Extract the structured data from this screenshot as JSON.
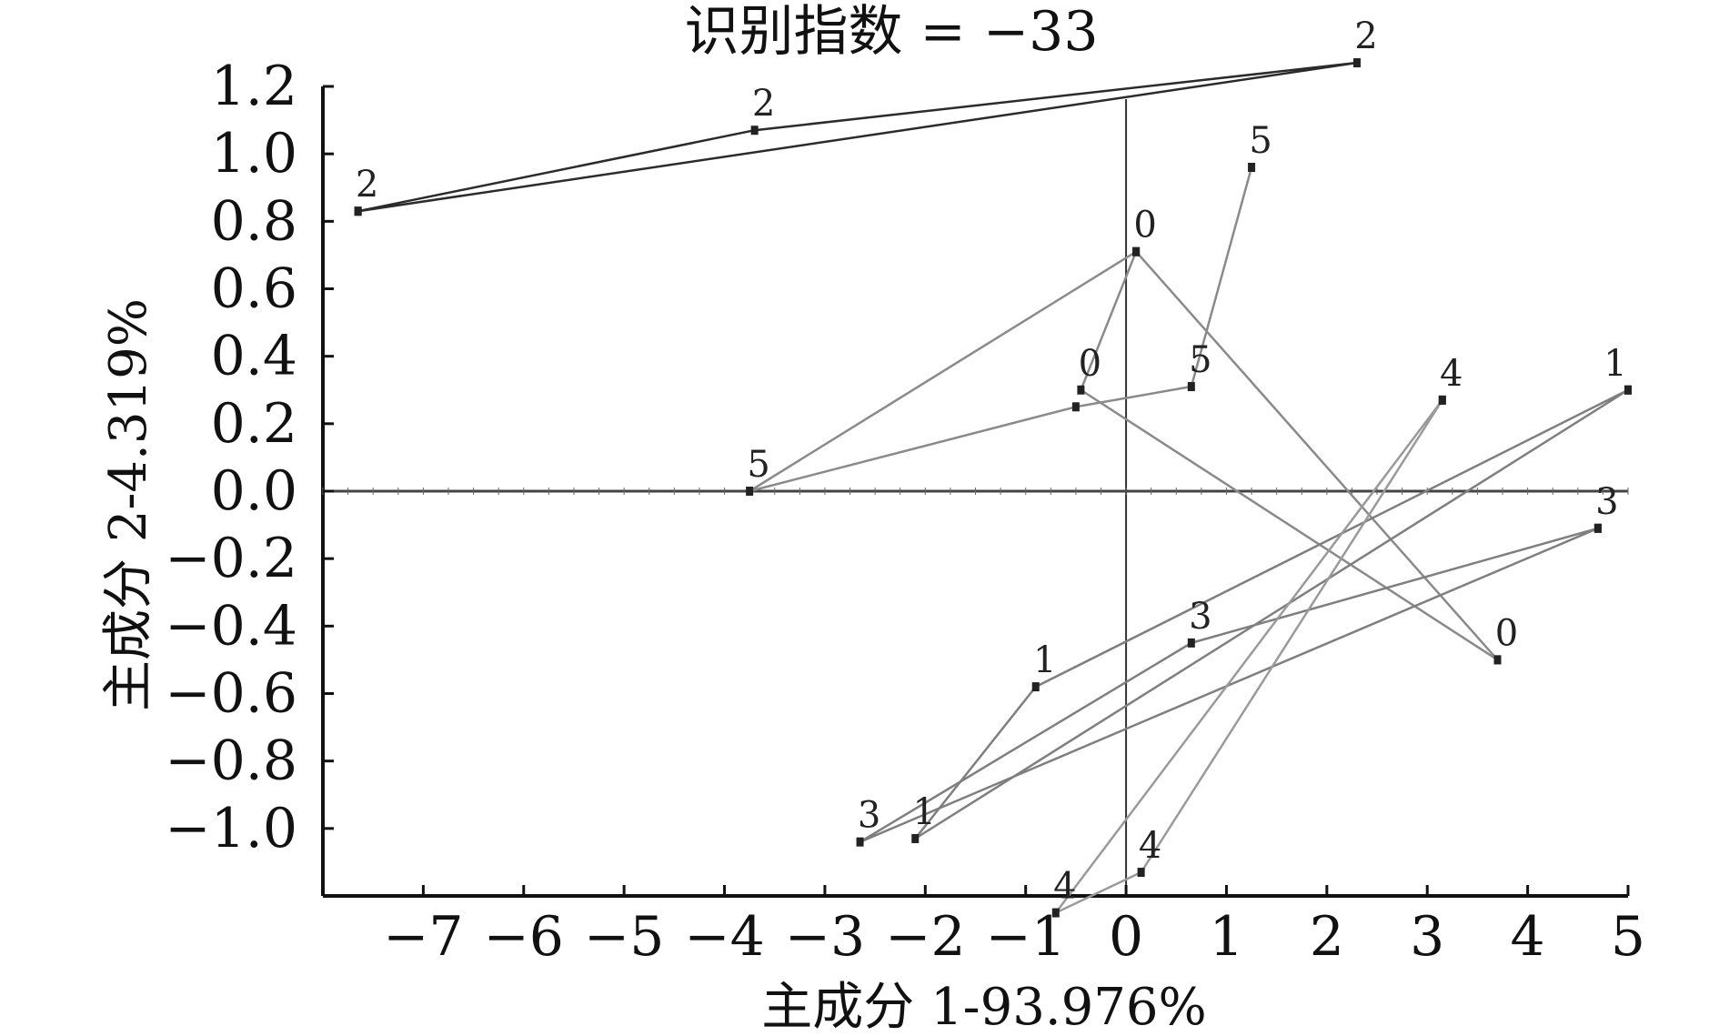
{
  "chart_data": {
    "type": "scatter",
    "title": "识别指数 = −33",
    "xlabel": "主成分 1-93.976%",
    "ylabel": "主成分 2-4.319%",
    "xlim": [
      -8.0,
      5.0
    ],
    "ylim": [
      -1.2,
      1.2
    ],
    "xticks": [
      -7,
      -6,
      -5,
      -4,
      -3,
      -2,
      -1,
      0,
      1,
      2,
      3,
      4,
      5
    ],
    "xtick_labels": [
      "−7",
      "−6",
      "−5",
      "−4",
      "−3",
      "−2",
      "−1",
      "0",
      "1",
      "2",
      "3",
      "4",
      "5"
    ],
    "yticks": [
      1.2,
      1.0,
      0.8,
      0.6,
      0.4,
      0.2,
      0.0,
      -0.2,
      -0.4,
      -0.6,
      -0.8,
      -1.0
    ],
    "ytick_labels": [
      "1.2",
      "1.0",
      "0.8",
      "0.6",
      "0.4",
      "0.2",
      "0.0",
      "−0.2",
      "−0.4",
      "−0.6",
      "−0.8",
      "−1.0"
    ],
    "grid": false,
    "series": [
      {
        "label": "2",
        "color": "#2b2b2b",
        "points": [
          {
            "x": -7.65,
            "y": 0.83
          },
          {
            "x": -3.7,
            "y": 1.07
          },
          {
            "x": 2.3,
            "y": 1.27
          },
          {
            "x": -7.65,
            "y": 0.83
          }
        ]
      },
      {
        "label": "5",
        "color": "#8a8a8a",
        "points": [
          {
            "x": 1.25,
            "y": 0.96
          },
          {
            "x": 0.65,
            "y": 0.31
          },
          {
            "x": -0.5,
            "y": 0.25
          },
          {
            "x": -3.75,
            "y": 0.0
          },
          {
            "x": 0.1,
            "y": 0.71
          },
          {
            "x": 3.7,
            "y": -0.5
          }
        ]
      },
      {
        "label": "0",
        "color": "#8a8a8a",
        "points": [
          {
            "x": 0.1,
            "y": 0.71
          },
          {
            "x": -0.45,
            "y": 0.3
          },
          {
            "x": 3.7,
            "y": -0.5
          }
        ]
      },
      {
        "label": "1",
        "color": "#7f7f7f",
        "points": [
          {
            "x": 5.0,
            "y": 0.3
          },
          {
            "x": -0.9,
            "y": -0.58
          },
          {
            "x": -2.1,
            "y": -1.03
          },
          {
            "x": 5.0,
            "y": 0.3
          }
        ]
      },
      {
        "label": "3",
        "color": "#7f7f7f",
        "points": [
          {
            "x": 4.7,
            "y": -0.11
          },
          {
            "x": 0.65,
            "y": -0.45
          },
          {
            "x": -2.65,
            "y": -1.04
          },
          {
            "x": 4.7,
            "y": -0.11
          }
        ]
      },
      {
        "label": "4",
        "color": "#9a9a9a",
        "points": [
          {
            "x": 3.15,
            "y": 0.27
          },
          {
            "x": 0.15,
            "y": -1.13
          },
          {
            "x": -0.7,
            "y": -1.25
          },
          {
            "x": 3.15,
            "y": 0.27
          }
        ]
      }
    ],
    "point_labels": [
      {
        "text": "2",
        "x": -7.65,
        "y": 0.83
      },
      {
        "text": "2",
        "x": -3.7,
        "y": 1.07
      },
      {
        "text": "2",
        "x": 2.3,
        "y": 1.27
      },
      {
        "text": "5",
        "x": 1.25,
        "y": 0.96
      },
      {
        "text": "0",
        "x": 0.1,
        "y": 0.71
      },
      {
        "text": "0",
        "x": -0.45,
        "y": 0.3
      },
      {
        "text": "5",
        "x": 0.65,
        "y": 0.31
      },
      {
        "text": "5",
        "x": -3.75,
        "y": 0.0
      },
      {
        "text": "0",
        "x": 3.7,
        "y": -0.5
      },
      {
        "text": "1",
        "x": 5.0,
        "y": 0.3
      },
      {
        "text": "3",
        "x": 4.7,
        "y": -0.11
      },
      {
        "text": "4",
        "x": 3.15,
        "y": 0.27
      },
      {
        "text": "3",
        "x": 0.65,
        "y": -0.45
      },
      {
        "text": "1",
        "x": -0.9,
        "y": -0.58
      },
      {
        "text": "3",
        "x": -2.65,
        "y": -1.04
      },
      {
        "text": "1",
        "x": -2.1,
        "y": -1.03
      },
      {
        "text": "4",
        "x": 0.15,
        "y": -1.13
      },
      {
        "text": "4",
        "x": -0.7,
        "y": -1.25
      }
    ]
  }
}
